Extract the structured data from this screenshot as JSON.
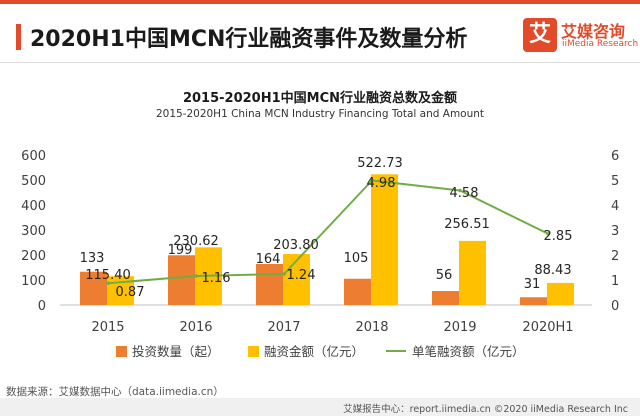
{
  "header": {
    "title": "2020H1中国MCN行业融资事件及数量分析",
    "logo_mark": "艾",
    "logo_cn": "艾媒咨询",
    "logo_en": "iiMedia Research"
  },
  "colors": {
    "accent": "#e24a2a",
    "bar1": "#ed7d31",
    "bar2": "#ffc000",
    "line": "#70ad47"
  },
  "chart_data": {
    "type": "bar",
    "title": "2015-2020H1中国MCN行业融资总数及金额",
    "subtitle": "2015-2020H1 China MCN Industry Financing Total and Amount",
    "categories": [
      "2015",
      "2016",
      "2017",
      "2018",
      "2019",
      "2020H1"
    ],
    "series": [
      {
        "name": "投资数量（起）",
        "type": "bar",
        "axis": "left",
        "values": [
          133,
          199,
          164,
          105,
          56,
          31
        ]
      },
      {
        "name": "融资金额（亿元）",
        "type": "bar",
        "axis": "left",
        "values": [
          115.4,
          230.62,
          203.8,
          522.73,
          256.51,
          88.43
        ]
      },
      {
        "name": "单笔融资额（亿元）",
        "type": "line",
        "axis": "right",
        "values": [
          0.87,
          1.16,
          1.24,
          4.98,
          4.58,
          2.85
        ]
      }
    ],
    "labels": [
      [
        "133",
        "199",
        "164",
        "105",
        "56",
        "31"
      ],
      [
        "115.40",
        "230.62",
        "203.80",
        "522.73",
        "256.51",
        "88.43"
      ],
      [
        "0.87",
        "1.16",
        "1.24",
        "4.98",
        "4.58",
        "2.85"
      ]
    ],
    "ylim": [
      0,
      600
    ],
    "yticks": [
      "0",
      "100",
      "200",
      "300",
      "400",
      "500",
      "600"
    ],
    "y2lim": [
      0,
      6
    ],
    "y2ticks": [
      "0",
      "1",
      "2",
      "3",
      "4",
      "5",
      "6"
    ],
    "legend_position": "bottom",
    "grid": false
  },
  "source": "数据来源：艾媒数据中心（data.iimedia.cn）",
  "footer": "艾媒报告中心：report.iimedia.cn  ©2020  iiMedia Research Inc"
}
